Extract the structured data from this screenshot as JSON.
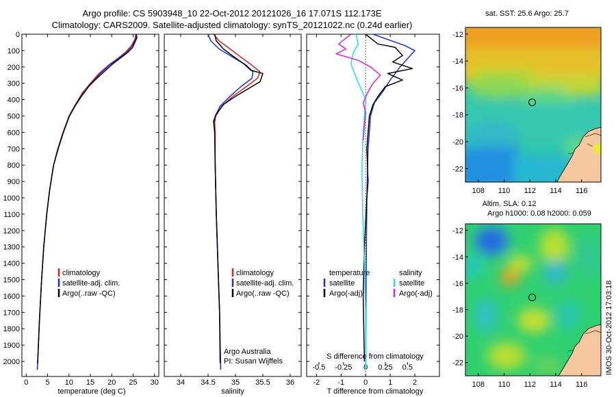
{
  "header": {
    "line1": "Argo profile: CS 5903948_10 22-Oct-2012 20121026_16 17.071S 112.173E",
    "line2": "Climatology: CARS2009. Satellite-adjusted climatology: synTS_20121022.nc (0.24d earlier)"
  },
  "colors": {
    "climatology": "#e02020",
    "satellite": "#1a2ee0",
    "argo": "#000000",
    "satellite_salinity": "#20e0e8",
    "argo_salinity": "#e020d8"
  },
  "depth_axis": {
    "range": [
      0,
      2050
    ],
    "ticks": [
      0,
      100,
      200,
      300,
      400,
      500,
      600,
      700,
      800,
      900,
      1000,
      1100,
      1200,
      1300,
      1400,
      1500,
      1600,
      1700,
      1800,
      1900,
      2000
    ]
  },
  "chart_data": [
    {
      "type": "line",
      "xlabel": "temperature (deg C)",
      "xlim": [
        -1,
        31
      ],
      "xticks": [
        0,
        5,
        10,
        15,
        20,
        25,
        30
      ],
      "legend": [
        "climatology",
        "satellite-adj. clim.",
        "Argo(..raw -QC)"
      ],
      "series": [
        {
          "name": "climatology",
          "color_key": "climatology",
          "points": [
            [
              25.6,
              0
            ],
            [
              25.4,
              30
            ],
            [
              24.6,
              70
            ],
            [
              23.2,
              110
            ],
            [
              21.3,
              150
            ],
            [
              19.2,
              190
            ],
            [
              17.0,
              240
            ],
            [
              15.0,
              300
            ],
            [
              13.1,
              360
            ],
            [
              11.5,
              430
            ],
            [
              10.0,
              500
            ],
            [
              8.6,
              600
            ],
            [
              7.4,
              700
            ],
            [
              6.4,
              800
            ],
            [
              5.5,
              950
            ],
            [
              4.8,
              1100
            ],
            [
              4.1,
              1300
            ],
            [
              3.6,
              1500
            ],
            [
              3.1,
              1750
            ],
            [
              2.6,
              2050
            ]
          ]
        },
        {
          "name": "satellite-adj. clim.",
          "color_key": "satellite",
          "points": [
            [
              25.8,
              0
            ],
            [
              25.6,
              30
            ],
            [
              24.8,
              70
            ],
            [
              23.5,
              110
            ],
            [
              21.5,
              150
            ],
            [
              19.4,
              190
            ],
            [
              17.3,
              240
            ],
            [
              15.2,
              300
            ],
            [
              13.3,
              360
            ],
            [
              11.6,
              430
            ],
            [
              10.1,
              500
            ],
            [
              8.7,
              600
            ],
            [
              7.4,
              700
            ],
            [
              6.4,
              800
            ],
            [
              5.5,
              950
            ],
            [
              4.8,
              1100
            ],
            [
              4.1,
              1300
            ],
            [
              3.6,
              1500
            ],
            [
              3.1,
              1750
            ],
            [
              2.6,
              2050
            ]
          ]
        },
        {
          "name": "Argo(..raw -QC)",
          "color_key": "argo",
          "points": [
            [
              25.7,
              0
            ],
            [
              25.9,
              20
            ],
            [
              25.4,
              50
            ],
            [
              24.9,
              80
            ],
            [
              23.8,
              110
            ],
            [
              22.3,
              140
            ],
            [
              20.3,
              180
            ],
            [
              18.6,
              220
            ],
            [
              16.5,
              270
            ],
            [
              14.6,
              320
            ],
            [
              12.9,
              380
            ],
            [
              11.4,
              440
            ],
            [
              10.1,
              500
            ],
            [
              8.7,
              600
            ],
            [
              7.5,
              700
            ],
            [
              6.4,
              800
            ],
            [
              5.5,
              950
            ],
            [
              4.8,
              1100
            ],
            [
              4.1,
              1300
            ],
            [
              3.6,
              1500
            ],
            [
              3.1,
              1750
            ],
            [
              2.7,
              2010
            ]
          ]
        }
      ]
    },
    {
      "type": "line",
      "xlabel": "salinity",
      "xlim": [
        33.7,
        36.2
      ],
      "xticks": [
        34,
        34.5,
        35,
        35.5,
        36
      ],
      "legend": [
        "climatology",
        "satellite-adj. clim.",
        "Argo(..raw -QC)"
      ],
      "annotation": [
        "Argo Australia",
        "PI: Susan Wijffels"
      ],
      "series": [
        {
          "name": "climatology",
          "color_key": "climatology",
          "points": [
            [
              34.6,
              0
            ],
            [
              34.7,
              40
            ],
            [
              34.9,
              90
            ],
            [
              35.1,
              140
            ],
            [
              35.3,
              190
            ],
            [
              35.45,
              230
            ],
            [
              35.4,
              270
            ],
            [
              35.2,
              320
            ],
            [
              34.95,
              380
            ],
            [
              34.75,
              440
            ],
            [
              34.64,
              500
            ],
            [
              34.62,
              540
            ],
            [
              34.63,
              600
            ],
            [
              34.63,
              800
            ],
            [
              34.65,
              1100
            ],
            [
              34.68,
              1400
            ],
            [
              34.71,
              1700
            ],
            [
              34.73,
              2050
            ]
          ]
        },
        {
          "name": "satellite-adj. clim.",
          "color_key": "satellite",
          "points": [
            [
              34.5,
              0
            ],
            [
              34.55,
              40
            ],
            [
              34.7,
              90
            ],
            [
              34.95,
              140
            ],
            [
              35.2,
              190
            ],
            [
              35.32,
              230
            ],
            [
              35.3,
              270
            ],
            [
              35.1,
              320
            ],
            [
              34.9,
              380
            ],
            [
              34.72,
              440
            ],
            [
              34.63,
              500
            ],
            [
              34.61,
              540
            ],
            [
              34.62,
              600
            ],
            [
              34.63,
              800
            ],
            [
              34.65,
              1100
            ],
            [
              34.68,
              1400
            ],
            [
              34.71,
              1700
            ],
            [
              34.73,
              2050
            ]
          ]
        },
        {
          "name": "Argo(..raw -QC)",
          "color_key": "argo",
          "points": [
            [
              34.62,
              0
            ],
            [
              34.65,
              40
            ],
            [
              34.78,
              90
            ],
            [
              34.98,
              140
            ],
            [
              35.15,
              180
            ],
            [
              35.28,
              220
            ],
            [
              35.5,
              240
            ],
            [
              35.45,
              290
            ],
            [
              35.25,
              330
            ],
            [
              35.0,
              380
            ],
            [
              34.78,
              430
            ],
            [
              34.65,
              490
            ],
            [
              34.6,
              530
            ],
            [
              34.62,
              600
            ],
            [
              34.63,
              800
            ],
            [
              34.65,
              1100
            ],
            [
              34.68,
              1400
            ],
            [
              34.71,
              1700
            ],
            [
              34.72,
              2010
            ]
          ]
        }
      ]
    },
    {
      "type": "line",
      "xlabel": "T difference from climatology",
      "xlabel_top": "S difference from climatology",
      "xlim": [
        -2.4,
        3.0
      ],
      "xticks": [
        -2,
        -1,
        0,
        1,
        2
      ],
      "s_ticks": [
        {
          "label": "-0.5",
          "t_pos": -1.9
        },
        {
          "label": "-0.25",
          "t_pos": -0.9
        },
        {
          "label": "0",
          "t_pos": 0
        },
        {
          "label": "0.25",
          "t_pos": 0.8
        },
        {
          "label": "0.5",
          "t_pos": 1.7
        }
      ],
      "legend_temperature": {
        "title": "temperature",
        "items": [
          "satellite",
          "Argo(-adj)"
        ]
      },
      "legend_salinity": {
        "title": "salinity",
        "items": [
          "satellite",
          "Argo(-adj)"
        ]
      },
      "series": [
        {
          "name": "temperature satellite",
          "color_key": "satellite",
          "points": [
            [
              0.3,
              0
            ],
            [
              1.6,
              70
            ],
            [
              2.0,
              100
            ],
            [
              1.7,
              150
            ],
            [
              1.4,
              200
            ],
            [
              1.0,
              280
            ],
            [
              0.7,
              350
            ],
            [
              0.35,
              420
            ],
            [
              0.2,
              500
            ],
            [
              0.1,
              700
            ],
            [
              0.05,
              1000
            ],
            [
              0.02,
              1500
            ],
            [
              0.0,
              2050
            ]
          ]
        },
        {
          "name": "temperature Argo(-adj)",
          "color_key": "argo",
          "points": [
            [
              0.0,
              0
            ],
            [
              0.5,
              60
            ],
            [
              1.2,
              80
            ],
            [
              1.5,
              130
            ],
            [
              1.1,
              170
            ],
            [
              1.9,
              210
            ],
            [
              0.9,
              240
            ],
            [
              1.5,
              280
            ],
            [
              0.8,
              320
            ],
            [
              0.5,
              380
            ],
            [
              0.3,
              430
            ],
            [
              0.15,
              500
            ],
            [
              0.1,
              600
            ],
            [
              0.05,
              700
            ],
            [
              0.1,
              900
            ],
            [
              0.05,
              1000
            ],
            [
              -0.05,
              1300
            ],
            [
              -0.1,
              1600
            ],
            [
              -0.05,
              2000
            ]
          ]
        },
        {
          "name": "salinity satellite",
          "color_key": "satellite_salinity",
          "points": [
            [
              -0.4,
              0
            ],
            [
              -0.3,
              60
            ],
            [
              -0.5,
              110
            ],
            [
              -0.6,
              180
            ],
            [
              -0.4,
              260
            ],
            [
              -0.2,
              330
            ],
            [
              0.0,
              400
            ],
            [
              -0.05,
              500
            ],
            [
              -0.1,
              600
            ],
            [
              -0.15,
              800
            ],
            [
              -0.12,
              1100
            ],
            [
              -0.05,
              1400
            ],
            [
              0.0,
              1700
            ],
            [
              0.0,
              2050
            ]
          ]
        },
        {
          "name": "salinity Argo(-adj)",
          "color_key": "argo_salinity",
          "points": [
            [
              -0.6,
              0
            ],
            [
              -1.1,
              60
            ],
            [
              -0.8,
              90
            ],
            [
              -1.2,
              120
            ],
            [
              -0.3,
              160
            ],
            [
              0.2,
              200
            ],
            [
              0.6,
              250
            ],
            [
              0.3,
              300
            ],
            [
              0.1,
              350
            ],
            [
              -0.1,
              420
            ],
            [
              0.0,
              480
            ],
            [
              -0.05,
              560
            ],
            [
              -0.1,
              650
            ]
          ]
        }
      ]
    },
    {
      "type": "heatmap",
      "title": "sat. SST: 25.6  Argo: 25.7",
      "xlim": [
        107,
        117.5
      ],
      "ylim": [
        -23,
        -11.5
      ],
      "xticks": [
        108,
        110,
        112,
        114,
        116
      ],
      "yticks": [
        -12,
        -14,
        -16,
        -18,
        -20,
        -22
      ],
      "marker": {
        "lon": 112.17,
        "lat": -17.07
      },
      "field": "sea surface temperature"
    },
    {
      "type": "heatmap",
      "title": "Altim. SLA: 0.12",
      "subtitle": "Argo h1000: 0.08 h2000: 0.059",
      "xlim": [
        107,
        117.5
      ],
      "ylim": [
        -23,
        -11.5
      ],
      "xticks": [
        108,
        110,
        112,
        114,
        116
      ],
      "yticks": [
        -12,
        -14,
        -16,
        -18,
        -20,
        -22
      ],
      "marker": {
        "lon": 112.17,
        "lat": -17.07
      },
      "field": "sea level anomaly"
    }
  ],
  "side_stamp": "IMOS 30-Oct-2012 17:03:18"
}
